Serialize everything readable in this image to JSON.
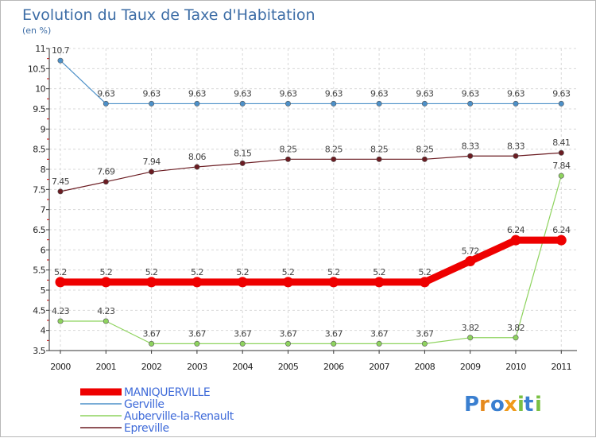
{
  "chart_data": {
    "type": "line",
    "title": "Evolution du Taux de Taxe d'Habitation",
    "subtitle": "(en %)",
    "categories": [
      "2000",
      "2001",
      "2002",
      "2003",
      "2004",
      "2005",
      "2006",
      "2007",
      "2008",
      "2009",
      "2010",
      "2011"
    ],
    "y_ticks": [
      "3.5",
      "4",
      "4.5",
      "5",
      "5.5",
      "6",
      "6.5",
      "7",
      "7.5",
      "8",
      "8.5",
      "9",
      "9.5",
      "10",
      "10.5",
      "11"
    ],
    "ylim": [
      3.5,
      11
    ],
    "grid": true,
    "legend_position": "bottom-left",
    "series": [
      {
        "name": "Gerville",
        "color": "#4d90c8",
        "values": [
          10.7,
          9.63,
          9.63,
          9.63,
          9.63,
          9.63,
          9.63,
          9.63,
          9.63,
          9.63,
          9.63,
          9.63
        ],
        "labels": [
          "10.7",
          "9.63",
          "9.63",
          "9.63",
          "9.63",
          "9.63",
          "9.63",
          "9.63",
          "9.63",
          "9.63",
          "9.63",
          "9.63"
        ]
      },
      {
        "name": "Epreville",
        "color": "#6b1c22",
        "values": [
          7.45,
          7.69,
          7.94,
          8.06,
          8.15,
          8.25,
          8.25,
          8.25,
          8.25,
          8.33,
          8.33,
          8.41
        ],
        "labels": [
          "7.45",
          "7.69",
          "7.94",
          "8.06",
          "8.15",
          "8.25",
          "8.25",
          "8.25",
          "8.25",
          "8.33",
          "8.33",
          "8.41"
        ]
      },
      {
        "name": "Auberville-la-Renault",
        "color": "#8ed35e",
        "values": [
          4.23,
          4.23,
          3.67,
          3.67,
          3.67,
          3.67,
          3.67,
          3.67,
          3.67,
          3.82,
          3.82,
          7.84
        ],
        "labels": [
          "4.23",
          "4.23",
          "3.67",
          "3.67",
          "3.67",
          "3.67",
          "3.67",
          "3.67",
          "3.67",
          "3.82",
          "3.82",
          "7.84"
        ]
      },
      {
        "name": "MANIQUERVILLE",
        "color": "#ee0000",
        "values": [
          5.2,
          5.2,
          5.2,
          5.2,
          5.2,
          5.2,
          5.2,
          5.2,
          5.2,
          5.72,
          6.24,
          6.24
        ],
        "labels": [
          "5.2",
          "5.2",
          "5.2",
          "5.2",
          "5.2",
          "5.2",
          "5.2",
          "5.2",
          "5.2",
          "5.72",
          "6.24",
          "6.24"
        ]
      }
    ],
    "legend": [
      "MANIQUERVILLE",
      "Gerville",
      "Auberville-la-Renault",
      "Epreville"
    ]
  },
  "logo": {
    "text": "Proxiti",
    "letters": [
      "P",
      "r",
      "o",
      "x",
      "i",
      "t",
      "i"
    ]
  }
}
